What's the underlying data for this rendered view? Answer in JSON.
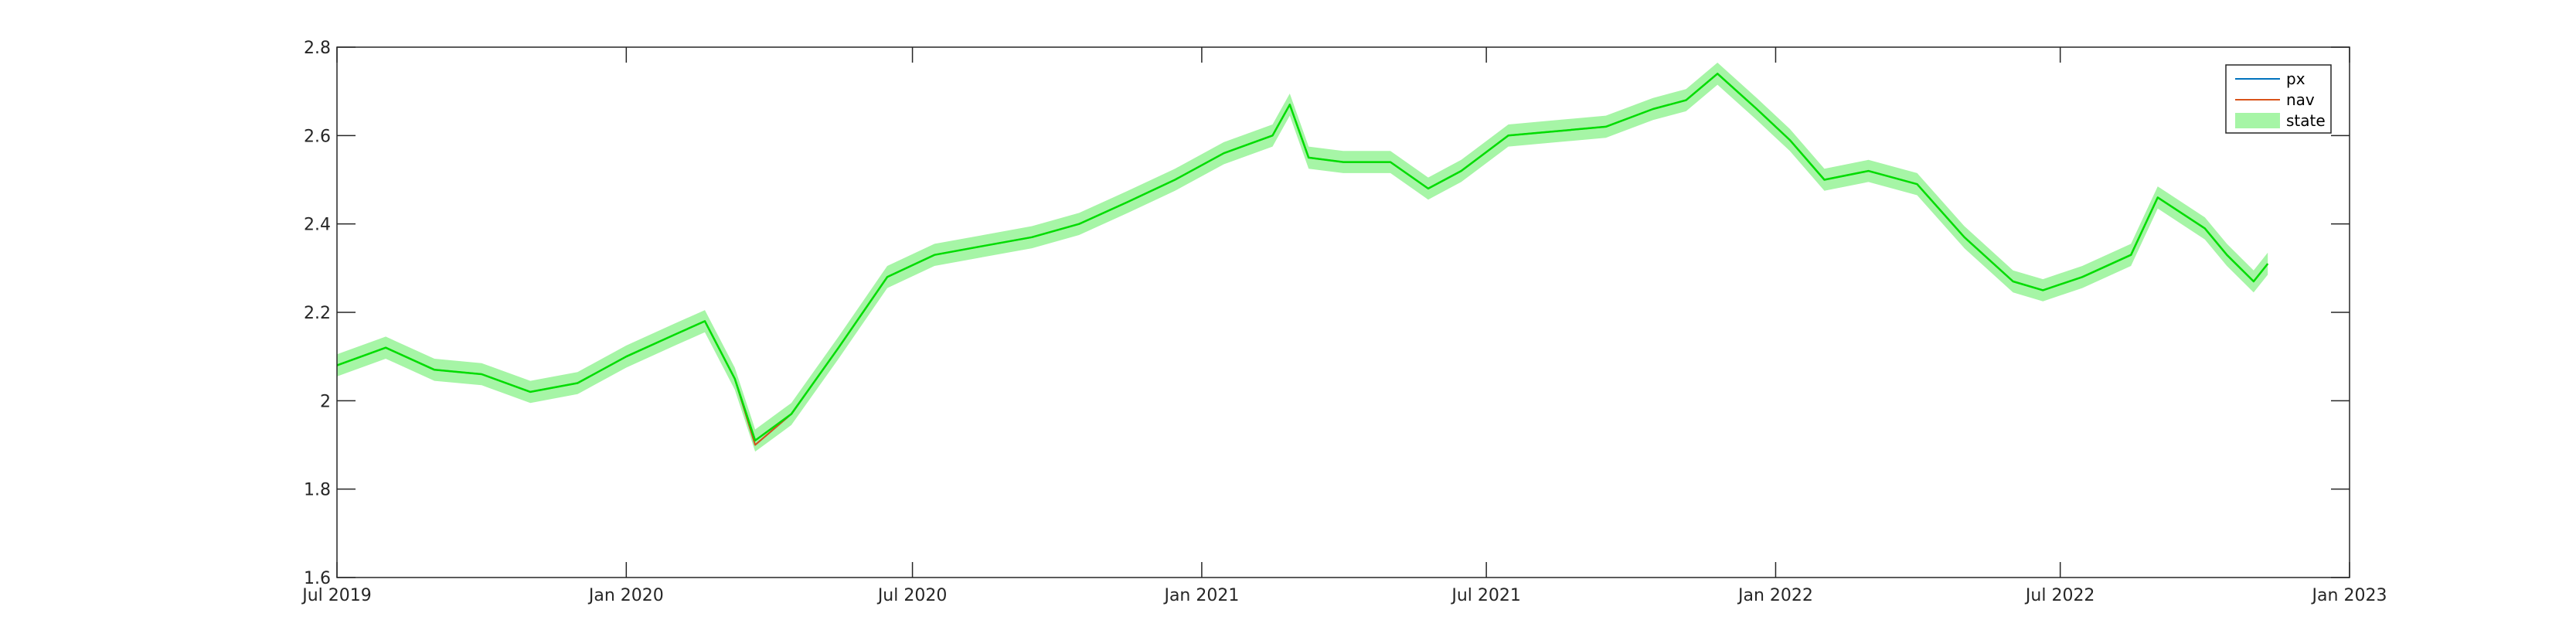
{
  "chart_data": {
    "type": "line",
    "title": "",
    "xlabel": "",
    "ylabel": "",
    "xlim": [
      "2019-07-01",
      "2023-01-01"
    ],
    "ylim": [
      1.6,
      2.8
    ],
    "grid": false,
    "legend_position": "top-right",
    "x_ticks": [
      "Jul 2019",
      "Jan 2020",
      "Jul 2020",
      "Jan 2021",
      "Jul 2021",
      "Jan 2022",
      "Jul 2022",
      "Jan 2023"
    ],
    "y_ticks": [
      "1.6",
      "1.8",
      "2",
      "2.2",
      "2.4",
      "2.6",
      "2.8"
    ],
    "x": [
      "2019-07-01",
      "2019-08-01",
      "2019-09-01",
      "2019-10-01",
      "2019-11-01",
      "2019-12-01",
      "2020-01-01",
      "2020-02-01",
      "2020-02-20",
      "2020-03-10",
      "2020-03-23",
      "2020-04-15",
      "2020-05-15",
      "2020-06-15",
      "2020-07-15",
      "2020-08-15",
      "2020-09-15",
      "2020-10-15",
      "2020-11-15",
      "2020-12-15",
      "2021-01-15",
      "2021-02-15",
      "2021-02-26",
      "2021-03-10",
      "2021-04-01",
      "2021-05-01",
      "2021-05-25",
      "2021-06-15",
      "2021-07-15",
      "2021-08-15",
      "2021-09-15",
      "2021-10-15",
      "2021-11-05",
      "2021-11-25",
      "2021-12-20",
      "2022-01-10",
      "2022-02-01",
      "2022-03-01",
      "2022-04-01",
      "2022-05-01",
      "2022-06-01",
      "2022-06-20",
      "2022-07-15",
      "2022-08-15",
      "2022-09-01",
      "2022-10-01",
      "2022-10-15",
      "2022-11-01",
      "2022-11-10"
    ],
    "series": [
      {
        "name": "px",
        "color": "#0072BD",
        "values": [
          2.08,
          2.12,
          2.07,
          2.06,
          2.02,
          2.04,
          2.1,
          2.15,
          2.18,
          2.05,
          1.9,
          1.97,
          2.12,
          2.28,
          2.33,
          2.35,
          2.37,
          2.4,
          2.45,
          2.5,
          2.56,
          2.6,
          2.67,
          2.55,
          2.54,
          2.54,
          2.48,
          2.52,
          2.6,
          2.61,
          2.62,
          2.66,
          2.68,
          2.74,
          2.66,
          2.59,
          2.5,
          2.52,
          2.49,
          2.37,
          2.27,
          2.25,
          2.28,
          2.33,
          2.46,
          2.39,
          2.33,
          2.27,
          2.31
        ]
      },
      {
        "name": "nav",
        "color": "#D95319",
        "values": [
          2.08,
          2.12,
          2.07,
          2.06,
          2.02,
          2.04,
          2.1,
          2.15,
          2.18,
          2.05,
          1.9,
          1.97,
          2.12,
          2.28,
          2.33,
          2.35,
          2.37,
          2.4,
          2.45,
          2.5,
          2.56,
          2.6,
          2.67,
          2.55,
          2.54,
          2.54,
          2.48,
          2.52,
          2.6,
          2.61,
          2.62,
          2.66,
          2.68,
          2.74,
          2.66,
          2.59,
          2.5,
          2.52,
          2.49,
          2.37,
          2.27,
          2.25,
          2.28,
          2.33,
          2.46,
          2.39,
          2.33,
          2.27,
          2.31
        ]
      },
      {
        "name": "state",
        "color": "#00DD00",
        "band_color": "#A6F5A6",
        "values": [
          2.08,
          2.12,
          2.07,
          2.06,
          2.02,
          2.04,
          2.1,
          2.15,
          2.18,
          2.05,
          1.91,
          1.97,
          2.12,
          2.28,
          2.33,
          2.35,
          2.37,
          2.4,
          2.45,
          2.5,
          2.56,
          2.6,
          2.67,
          2.55,
          2.54,
          2.54,
          2.48,
          2.52,
          2.6,
          2.61,
          2.62,
          2.66,
          2.68,
          2.74,
          2.66,
          2.59,
          2.5,
          2.52,
          2.49,
          2.37,
          2.27,
          2.25,
          2.28,
          2.33,
          2.46,
          2.39,
          2.33,
          2.27,
          2.31
        ],
        "band_halfwidth": 0.025
      }
    ],
    "legend": [
      "px",
      "nav",
      "state"
    ]
  }
}
